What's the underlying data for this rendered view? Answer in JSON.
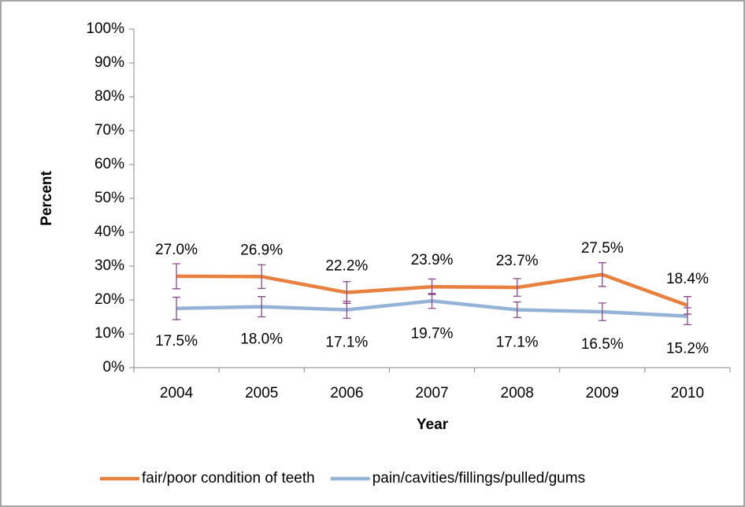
{
  "chart_data": {
    "type": "line",
    "x_label": "Year",
    "y_label": "Percent",
    "categories": [
      "2004",
      "2005",
      "2006",
      "2007",
      "2008",
      "2009",
      "2010"
    ],
    "series": [
      {
        "name": "fair/poor condition of teeth",
        "color": "#e8803f",
        "values": [
          27.0,
          26.9,
          22.2,
          23.9,
          23.7,
          27.5,
          18.4
        ],
        "value_labels": [
          "27.0%",
          "26.9%",
          "22.2%",
          "23.9%",
          "23.7%",
          "27.5%",
          "18.4%"
        ],
        "errors": [
          3.7,
          3.5,
          3.2,
          2.3,
          2.6,
          3.5,
          2.6
        ]
      },
      {
        "name": "pain/cavities/fillings/pulled/gums",
        "color": "#95b3d7",
        "values": [
          17.5,
          18.0,
          17.1,
          19.7,
          17.1,
          16.5,
          15.2
        ],
        "value_labels": [
          "17.5%",
          "18.0%",
          "17.1%",
          "19.7%",
          "17.1%",
          "16.5%",
          "15.2%"
        ],
        "errors": [
          3.3,
          3.0,
          2.5,
          2.2,
          2.3,
          2.6,
          2.5
        ]
      }
    ],
    "error_color": "#8a4a8a",
    "ylim": [
      0,
      100
    ],
    "yticks": [
      {
        "value": 0,
        "label": "0%"
      },
      {
        "value": 10,
        "label": "10%"
      },
      {
        "value": 20,
        "label": "20%"
      },
      {
        "value": 30,
        "label": "30%"
      },
      {
        "value": 40,
        "label": "40%"
      },
      {
        "value": 50,
        "label": "50%"
      },
      {
        "value": 60,
        "label": "60%"
      },
      {
        "value": 70,
        "label": "70%"
      },
      {
        "value": 80,
        "label": "80%"
      },
      {
        "value": 90,
        "label": "90%"
      },
      {
        "value": 100,
        "label": "100%"
      }
    ],
    "grid": false,
    "legend": "bottom"
  }
}
